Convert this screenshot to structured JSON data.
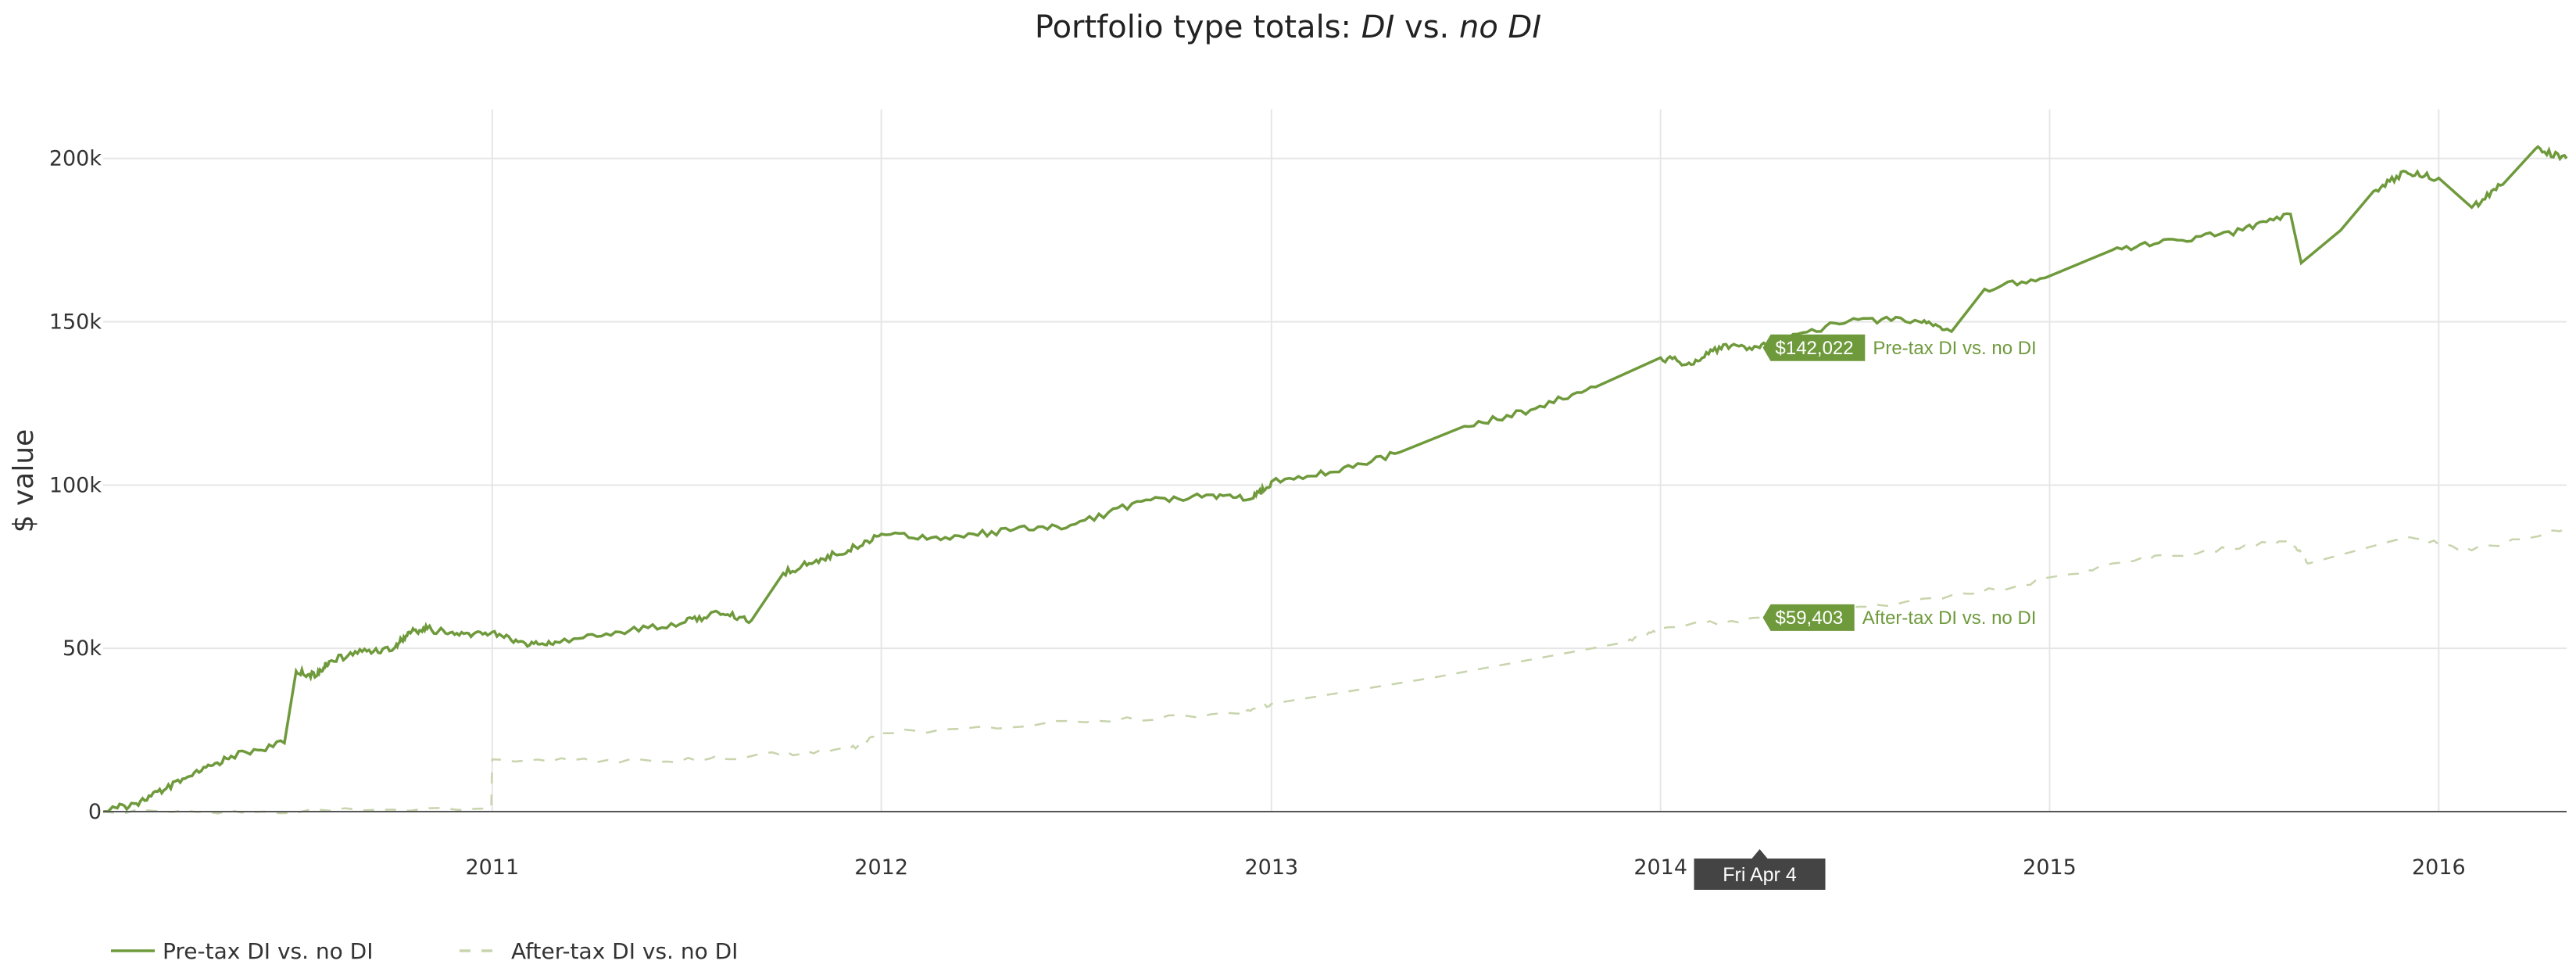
{
  "colors": {
    "pretax": "#6f9a3c",
    "aftertax": "#c7d4ac",
    "flag_bg": "#6f9a3c",
    "date_bg": "#444444"
  },
  "chart_data": {
    "type": "line",
    "title_parts": [
      "Portfolio type totals: ",
      "DI",
      " vs. ",
      "no DI"
    ],
    "ylabel": "$ value",
    "xlabel": "",
    "xlim": [
      "2010-01-01",
      "2016-04-30"
    ],
    "ylim": [
      0,
      215000
    ],
    "yticks": [
      0,
      50000,
      100000,
      150000,
      200000
    ],
    "ytick_labels": [
      "0",
      "50k",
      "100k",
      "150k",
      "200k"
    ],
    "xticks": [
      "2011-01-01",
      "2012-01-01",
      "2013-01-01",
      "2014-01-01",
      "2015-01-01",
      "2016-01-01"
    ],
    "xtick_labels": [
      "2011",
      "2012",
      "2013",
      "2014",
      "2015",
      "2016"
    ],
    "grid": true,
    "legend_position": "bottom-left",
    "series": [
      {
        "name": "Pre-tax DI vs. no DI",
        "style": "solid",
        "points": [
          [
            "2010-01-01",
            0
          ],
          [
            "2010-02-01",
            2500
          ],
          [
            "2010-03-01",
            7000
          ],
          [
            "2010-04-01",
            12000
          ],
          [
            "2010-05-01",
            17000
          ],
          [
            "2010-06-20",
            21000
          ],
          [
            "2010-07-01",
            43000
          ],
          [
            "2010-07-20",
            41500
          ],
          [
            "2010-08-01",
            46000
          ],
          [
            "2010-09-01",
            49000
          ],
          [
            "2010-10-01",
            50000
          ],
          [
            "2010-10-15",
            55000
          ],
          [
            "2010-11-01",
            56000
          ],
          [
            "2010-12-01",
            54000
          ],
          [
            "2011-01-01",
            55000
          ],
          [
            "2011-02-01",
            51500
          ],
          [
            "2011-03-01",
            52000
          ],
          [
            "2011-05-01",
            55000
          ],
          [
            "2011-07-01",
            58000
          ],
          [
            "2011-08-01",
            61000
          ],
          [
            "2011-09-01",
            58500
          ],
          [
            "2011-10-01",
            73000
          ],
          [
            "2011-11-01",
            77000
          ],
          [
            "2011-12-01",
            80000
          ],
          [
            "2012-01-01",
            85000
          ],
          [
            "2012-03-01",
            84000
          ],
          [
            "2012-05-01",
            86000
          ],
          [
            "2012-07-01",
            88000
          ],
          [
            "2012-09-01",
            95000
          ],
          [
            "2012-11-01",
            97000
          ],
          [
            "2012-12-15",
            96000
          ],
          [
            "2013-01-01",
            101000
          ],
          [
            "2013-03-01",
            104000
          ],
          [
            "2013-05-01",
            110000
          ],
          [
            "2013-07-01",
            118000
          ],
          [
            "2013-09-01",
            123000
          ],
          [
            "2013-11-01",
            130000
          ],
          [
            "2014-01-01",
            139000
          ],
          [
            "2014-02-01",
            137000
          ],
          [
            "2014-03-01",
            143000
          ],
          [
            "2014-04-04",
            142022
          ],
          [
            "2014-05-01",
            145000
          ],
          [
            "2014-07-01",
            151000
          ],
          [
            "2014-09-01",
            150000
          ],
          [
            "2014-10-01",
            147000
          ],
          [
            "2014-11-01",
            160000
          ],
          [
            "2015-01-01",
            164000
          ],
          [
            "2015-03-01",
            172000
          ],
          [
            "2015-05-01",
            175000
          ],
          [
            "2015-07-01",
            178000
          ],
          [
            "2015-08-15",
            183000
          ],
          [
            "2015-08-25",
            168000
          ],
          [
            "2015-10-01",
            178000
          ],
          [
            "2015-11-01",
            190000
          ],
          [
            "2015-12-01",
            196000
          ],
          [
            "2016-01-01",
            194000
          ],
          [
            "2016-02-01",
            185000
          ],
          [
            "2016-03-01",
            192000
          ],
          [
            "2016-04-01",
            203000
          ],
          [
            "2016-04-30",
            200000
          ]
        ]
      },
      {
        "name": "After-tax DI vs. no DI",
        "style": "dashed",
        "points": [
          [
            "2010-01-01",
            0
          ],
          [
            "2010-06-01",
            0
          ],
          [
            "2010-12-31",
            1000
          ],
          [
            "2011-01-01",
            16000
          ],
          [
            "2011-06-01",
            15500
          ],
          [
            "2011-09-01",
            17000
          ],
          [
            "2011-12-01",
            19000
          ],
          [
            "2012-01-01",
            24000
          ],
          [
            "2012-06-01",
            27000
          ],
          [
            "2012-12-01",
            30000
          ],
          [
            "2013-01-01",
            33000
          ],
          [
            "2013-06-01",
            41000
          ],
          [
            "2013-12-01",
            52000
          ],
          [
            "2014-01-01",
            56000
          ],
          [
            "2014-04-04",
            59403
          ],
          [
            "2014-08-01",
            63000
          ],
          [
            "2014-12-01",
            69000
          ],
          [
            "2015-03-01",
            76000
          ],
          [
            "2015-06-01",
            80000
          ],
          [
            "2015-08-15",
            83000
          ],
          [
            "2015-09-01",
            76000
          ],
          [
            "2015-12-01",
            84000
          ],
          [
            "2016-02-01",
            80000
          ],
          [
            "2016-04-30",
            87000
          ]
        ]
      }
    ],
    "hover": {
      "date": "2014-04-04",
      "date_label": "Fri Apr  4",
      "flags": [
        {
          "series": "Pre-tax DI vs. no DI",
          "value": 142022,
          "value_label": "$142,022"
        },
        {
          "series": "After-tax DI vs. no DI",
          "value": 59403,
          "value_label": "$59,403"
        }
      ]
    }
  }
}
